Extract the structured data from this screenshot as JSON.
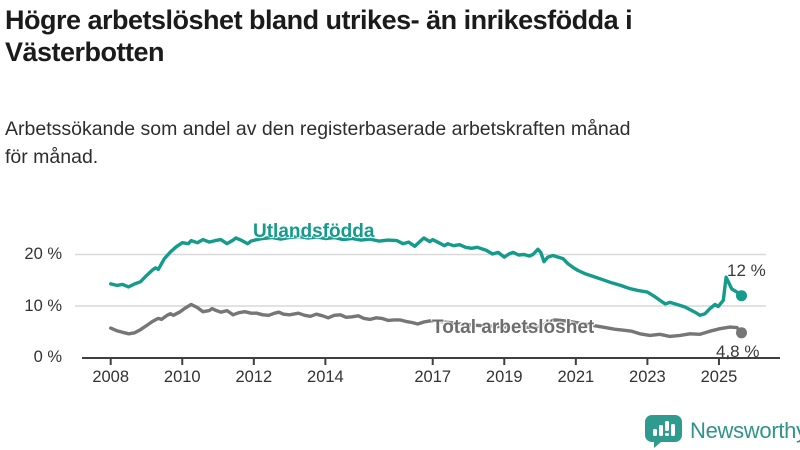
{
  "page": {
    "title_lines": [
      "Högre arbetslöshet bland utrikes- än inrikesfödda i",
      "Västerbotten"
    ],
    "subtitle_lines": [
      "Arbetssökande som andel av den registerbaserade arbetskraften månad",
      "för månad."
    ]
  },
  "branding": {
    "logo_text": "Newsworthy",
    "logo_icon": "newsworthy-speech-bubble-bar-chart-icon",
    "logo_color": "#2f9a8e"
  },
  "chart_data": {
    "type": "line",
    "title": "Högre arbetslöshet bland utrikes- än inrikesfödda i Västerbotten",
    "subtitle": "Arbetssökande som andel av den registerbaserade arbetskraften månad för månad.",
    "legend_position": "inline-labels",
    "grid": "horizontal",
    "x_axis": {
      "range": [
        2007.2,
        2026.3
      ],
      "ticks": [
        {
          "label": "2008",
          "value": 2008
        },
        {
          "label": "2010",
          "value": 2010
        },
        {
          "label": "2012",
          "value": 2012
        },
        {
          "label": "2014",
          "value": 2014
        },
        {
          "label": "2017",
          "value": 2017
        },
        {
          "label": "2019",
          "value": 2019
        },
        {
          "label": "2021",
          "value": 2021
        },
        {
          "label": "2023",
          "value": 2023
        },
        {
          "label": "2025",
          "value": 2025
        }
      ]
    },
    "y_axis": {
      "range": [
        0,
        31
      ],
      "unit": "%",
      "ticks": [
        {
          "label": "20 %",
          "value": 20
        },
        {
          "label": "10 %",
          "value": 10
        },
        {
          "label": "0 %",
          "value": 0
        }
      ]
    },
    "series": [
      {
        "name": "Utlandsfödda",
        "color": "#149b8c",
        "end_label": "12 %",
        "end_value": 12,
        "points": [
          [
            2008.0,
            14.3
          ],
          [
            2008.17,
            14.0
          ],
          [
            2008.33,
            14.2
          ],
          [
            2008.5,
            13.7
          ],
          [
            2008.67,
            14.3
          ],
          [
            2008.83,
            14.7
          ],
          [
            2009.0,
            15.9
          ],
          [
            2009.17,
            17.0
          ],
          [
            2009.25,
            17.4
          ],
          [
            2009.33,
            17.1
          ],
          [
            2009.5,
            19.2
          ],
          [
            2009.67,
            20.5
          ],
          [
            2009.83,
            21.5
          ],
          [
            2010.0,
            22.3
          ],
          [
            2010.17,
            22.1
          ],
          [
            2010.25,
            22.7
          ],
          [
            2010.42,
            22.3
          ],
          [
            2010.58,
            22.9
          ],
          [
            2010.75,
            22.4
          ],
          [
            2010.92,
            22.7
          ],
          [
            2011.08,
            22.9
          ],
          [
            2011.25,
            22.1
          ],
          [
            2011.42,
            22.8
          ],
          [
            2011.5,
            23.2
          ],
          [
            2011.67,
            22.7
          ],
          [
            2011.83,
            22.1
          ],
          [
            2011.92,
            22.6
          ],
          [
            2012.08,
            22.9
          ],
          [
            2012.25,
            23.1
          ],
          [
            2012.5,
            23.3
          ],
          [
            2012.75,
            23.0
          ],
          [
            2013.0,
            23.3
          ],
          [
            2013.25,
            23.5
          ],
          [
            2013.5,
            23.2
          ],
          [
            2013.75,
            23.4
          ],
          [
            2014.0,
            23.1
          ],
          [
            2014.25,
            23.3
          ],
          [
            2014.5,
            22.9
          ],
          [
            2014.75,
            23.1
          ],
          [
            2015.0,
            22.8
          ],
          [
            2015.25,
            23.0
          ],
          [
            2015.5,
            22.6
          ],
          [
            2015.75,
            22.8
          ],
          [
            2016.0,
            22.7
          ],
          [
            2016.17,
            22.1
          ],
          [
            2016.33,
            22.4
          ],
          [
            2016.5,
            21.6
          ],
          [
            2016.67,
            22.7
          ],
          [
            2016.75,
            23.2
          ],
          [
            2016.92,
            22.5
          ],
          [
            2017.0,
            22.9
          ],
          [
            2017.17,
            22.3
          ],
          [
            2017.33,
            21.7
          ],
          [
            2017.42,
            22.1
          ],
          [
            2017.58,
            21.7
          ],
          [
            2017.75,
            21.9
          ],
          [
            2017.92,
            21.4
          ],
          [
            2018.08,
            21.2
          ],
          [
            2018.25,
            21.4
          ],
          [
            2018.5,
            20.8
          ],
          [
            2018.67,
            20.1
          ],
          [
            2018.83,
            20.4
          ],
          [
            2019.0,
            19.5
          ],
          [
            2019.13,
            20.1
          ],
          [
            2019.25,
            20.4
          ],
          [
            2019.4,
            19.9
          ],
          [
            2019.55,
            20.0
          ],
          [
            2019.7,
            19.7
          ],
          [
            2019.8,
            20.0
          ],
          [
            2019.94,
            21.0
          ],
          [
            2020.02,
            20.4
          ],
          [
            2020.11,
            18.6
          ],
          [
            2020.22,
            19.5
          ],
          [
            2020.36,
            19.8
          ],
          [
            2020.5,
            19.5
          ],
          [
            2020.64,
            19.2
          ],
          [
            2020.78,
            18.2
          ],
          [
            2020.92,
            17.5
          ],
          [
            2021.06,
            16.9
          ],
          [
            2021.25,
            16.3
          ],
          [
            2021.5,
            15.7
          ],
          [
            2021.75,
            15.1
          ],
          [
            2022.0,
            14.5
          ],
          [
            2022.25,
            14.0
          ],
          [
            2022.5,
            13.4
          ],
          [
            2022.75,
            13.0
          ],
          [
            2023.0,
            12.7
          ],
          [
            2023.21,
            11.8
          ],
          [
            2023.35,
            11.1
          ],
          [
            2023.5,
            10.4
          ],
          [
            2023.63,
            10.7
          ],
          [
            2023.83,
            10.3
          ],
          [
            2024.05,
            9.8
          ],
          [
            2024.19,
            9.3
          ],
          [
            2024.33,
            8.8
          ],
          [
            2024.47,
            8.2
          ],
          [
            2024.61,
            8.5
          ],
          [
            2024.75,
            9.5
          ],
          [
            2024.89,
            10.3
          ],
          [
            2024.98,
            9.9
          ],
          [
            2025.12,
            11.1
          ],
          [
            2025.2,
            15.6
          ],
          [
            2025.36,
            13.3
          ],
          [
            2025.5,
            12.7
          ],
          [
            2025.63,
            12.0
          ]
        ]
      },
      {
        "name": "Total arbetslöshet",
        "color": "#767676",
        "end_label": "4,8 %",
        "end_value": 4.8,
        "points": [
          [
            2008.0,
            5.7
          ],
          [
            2008.17,
            5.2
          ],
          [
            2008.33,
            4.9
          ],
          [
            2008.5,
            4.6
          ],
          [
            2008.67,
            4.8
          ],
          [
            2008.83,
            5.4
          ],
          [
            2009.0,
            6.2
          ],
          [
            2009.17,
            7.0
          ],
          [
            2009.33,
            7.6
          ],
          [
            2009.42,
            7.4
          ],
          [
            2009.58,
            8.2
          ],
          [
            2009.67,
            8.5
          ],
          [
            2009.75,
            8.2
          ],
          [
            2009.92,
            8.8
          ],
          [
            2010.08,
            9.6
          ],
          [
            2010.25,
            10.3
          ],
          [
            2010.42,
            9.7
          ],
          [
            2010.58,
            8.9
          ],
          [
            2010.75,
            9.1
          ],
          [
            2010.83,
            9.5
          ],
          [
            2010.92,
            9.2
          ],
          [
            2011.08,
            8.8
          ],
          [
            2011.25,
            9.1
          ],
          [
            2011.42,
            8.3
          ],
          [
            2011.58,
            8.7
          ],
          [
            2011.75,
            8.9
          ],
          [
            2011.92,
            8.6
          ],
          [
            2012.08,
            8.6
          ],
          [
            2012.25,
            8.3
          ],
          [
            2012.42,
            8.2
          ],
          [
            2012.58,
            8.6
          ],
          [
            2012.7,
            8.8
          ],
          [
            2012.83,
            8.4
          ],
          [
            2013.0,
            8.3
          ],
          [
            2013.25,
            8.6
          ],
          [
            2013.42,
            8.2
          ],
          [
            2013.58,
            8.0
          ],
          [
            2013.75,
            8.4
          ],
          [
            2013.92,
            8.1
          ],
          [
            2014.08,
            7.7
          ],
          [
            2014.25,
            8.2
          ],
          [
            2014.42,
            8.3
          ],
          [
            2014.58,
            7.8
          ],
          [
            2014.75,
            7.9
          ],
          [
            2014.92,
            8.1
          ],
          [
            2015.08,
            7.6
          ],
          [
            2015.25,
            7.4
          ],
          [
            2015.42,
            7.7
          ],
          [
            2015.58,
            7.6
          ],
          [
            2015.75,
            7.2
          ],
          [
            2015.92,
            7.3
          ],
          [
            2016.08,
            7.3
          ],
          [
            2016.25,
            7.0
          ],
          [
            2016.42,
            6.8
          ],
          [
            2016.58,
            6.5
          ],
          [
            2016.75,
            6.9
          ],
          [
            2016.92,
            7.1
          ],
          [
            2017.08,
            7.1
          ],
          [
            2017.33,
            6.9
          ],
          [
            2017.58,
            6.7
          ],
          [
            2017.83,
            6.5
          ],
          [
            2018.08,
            6.3
          ],
          [
            2018.33,
            6.2
          ],
          [
            2018.58,
            6.1
          ],
          [
            2018.83,
            6.0
          ],
          [
            2019.08,
            5.9
          ],
          [
            2019.33,
            5.8
          ],
          [
            2019.58,
            5.8
          ],
          [
            2019.83,
            5.9
          ],
          [
            2020.08,
            6.2
          ],
          [
            2020.25,
            7.0
          ],
          [
            2020.42,
            7.3
          ],
          [
            2020.58,
            7.2
          ],
          [
            2020.83,
            7.0
          ],
          [
            2021.08,
            6.7
          ],
          [
            2021.33,
            6.4
          ],
          [
            2021.58,
            6.1
          ],
          [
            2021.83,
            5.8
          ],
          [
            2022.08,
            5.5
          ],
          [
            2022.33,
            5.3
          ],
          [
            2022.56,
            5.1
          ],
          [
            2022.79,
            4.6
          ],
          [
            2023.07,
            4.3
          ],
          [
            2023.35,
            4.5
          ],
          [
            2023.63,
            4.1
          ],
          [
            2023.91,
            4.3
          ],
          [
            2024.19,
            4.6
          ],
          [
            2024.47,
            4.5
          ],
          [
            2024.75,
            5.1
          ],
          [
            2025.03,
            5.6
          ],
          [
            2025.31,
            5.9
          ],
          [
            2025.5,
            5.8
          ],
          [
            2025.63,
            4.8
          ]
        ]
      }
    ]
  }
}
